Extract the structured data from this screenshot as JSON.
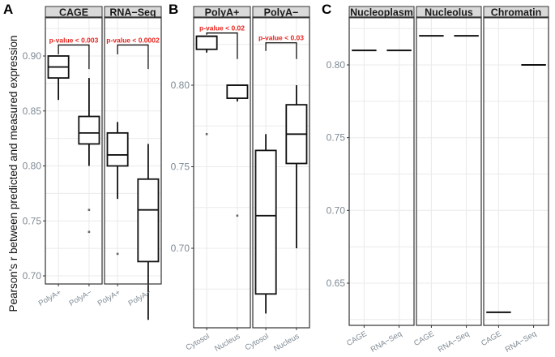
{
  "chart_data": {
    "type": "box",
    "ylabel": "Pearson's r between predicted and measured expression",
    "panels": [
      {
        "id": "A",
        "letter": "A",
        "ylim": [
          0.66,
          0.935
        ],
        "yticks": [
          0.7,
          0.75,
          0.8,
          0.85,
          0.9
        ],
        "ytick_labels": [
          "0.70",
          "0.75",
          "0.80",
          "0.85",
          "0.90"
        ],
        "facets": [
          {
            "title": "CAGE",
            "categories": [
              "PolyA+",
              "PolyA−"
            ],
            "boxes": [
              {
                "category": "PolyA+",
                "whisker_low": 0.86,
                "q1": 0.88,
                "median": 0.89,
                "q3": 0.9,
                "whisker_high": 0.9,
                "outliers": []
              },
              {
                "category": "PolyA−",
                "whisker_low": 0.8,
                "q1": 0.82,
                "median": 0.83,
                "q3": 0.845,
                "whisker_high": 0.88,
                "outliers": [
                  0.76,
                  0.74
                ]
              }
            ],
            "annotation": {
              "text": "p-value < 0.003",
              "left_y": 0.9,
              "right_y": 0.894,
              "top_y": 0.91
            }
          },
          {
            "title": "RNA−Seq",
            "categories": [
              "PolyA+",
              "PolyA−"
            ],
            "boxes": [
              {
                "category": "PolyA+",
                "whisker_low": 0.77,
                "q1": 0.8,
                "median": 0.81,
                "q3": 0.83,
                "whisker_high": 0.84,
                "outliers": [
                  0.72
                ]
              },
              {
                "category": "PolyA−",
                "whisker_low": 0.66,
                "q1": 0.713,
                "median": 0.76,
                "q3": 0.788,
                "whisker_high": 0.82,
                "outliers": []
              }
            ],
            "annotation": {
              "text": "p-value < 0.0002",
              "left_y": 0.9,
              "right_y": 0.894,
              "top_y": 0.91
            }
          }
        ]
      },
      {
        "id": "B",
        "letter": "B",
        "ylim": [
          0.655,
          0.842
        ],
        "yticks": [
          0.7,
          0.75,
          0.8
        ],
        "ytick_labels": [
          "0.70",
          "0.75",
          "0.80"
        ],
        "facets": [
          {
            "title": "PolyA+",
            "categories": [
              "Cytosol",
              "Nucleus"
            ],
            "boxes": [
              {
                "category": "Cytosol",
                "whisker_low": 0.82,
                "q1": 0.822,
                "median": 0.83,
                "q3": 0.83,
                "whisker_high": 0.83,
                "outliers": [
                  0.77
                ]
              },
              {
                "category": "Nucleus",
                "whisker_low": 0.79,
                "q1": 0.792,
                "median": 0.8,
                "q3": 0.8,
                "whisker_high": 0.8,
                "outliers": [
                  0.72
                ]
              }
            ],
            "annotation": {
              "text": "p-value < 0.02",
              "left_y": 0.83,
              "right_y": 0.82,
              "top_y": 0.832
            }
          },
          {
            "title": "PolyA−",
            "categories": [
              "Cytosol",
              "Nucleus"
            ],
            "boxes": [
              {
                "category": "Cytosol",
                "whisker_low": 0.66,
                "q1": 0.672,
                "median": 0.72,
                "q3": 0.76,
                "whisker_high": 0.77,
                "outliers": []
              },
              {
                "category": "Nucleus",
                "whisker_low": 0.7,
                "q1": 0.752,
                "median": 0.77,
                "q3": 0.788,
                "whisker_high": 0.8,
                "outliers": []
              }
            ],
            "annotation": {
              "text": "p-value < 0.03",
              "left_y": 0.82,
              "right_y": 0.82,
              "top_y": 0.826
            }
          }
        ]
      },
      {
        "id": "C",
        "letter": "C",
        "ylim": [
          0.622,
          0.835
        ],
        "yticks": [
          0.65,
          0.7,
          0.75,
          0.8
        ],
        "ytick_labels": [
          "0.65",
          "0.70",
          "0.75",
          "0.80"
        ],
        "facets": [
          {
            "title": "Nucleoplasm",
            "categories": [
              "CAGE",
              "RNA−Seq"
            ],
            "values": [
              0.81,
              0.81
            ]
          },
          {
            "title": "Nucleolus",
            "categories": [
              "CAGE",
              "RNA−Seq"
            ],
            "values": [
              0.82,
              0.82
            ]
          },
          {
            "title": "Chromatin",
            "categories": [
              "CAGE",
              "RNA−Seq"
            ],
            "values": [
              0.63,
              0.8
            ]
          }
        ]
      }
    ],
    "grid": true,
    "legend": "none"
  }
}
